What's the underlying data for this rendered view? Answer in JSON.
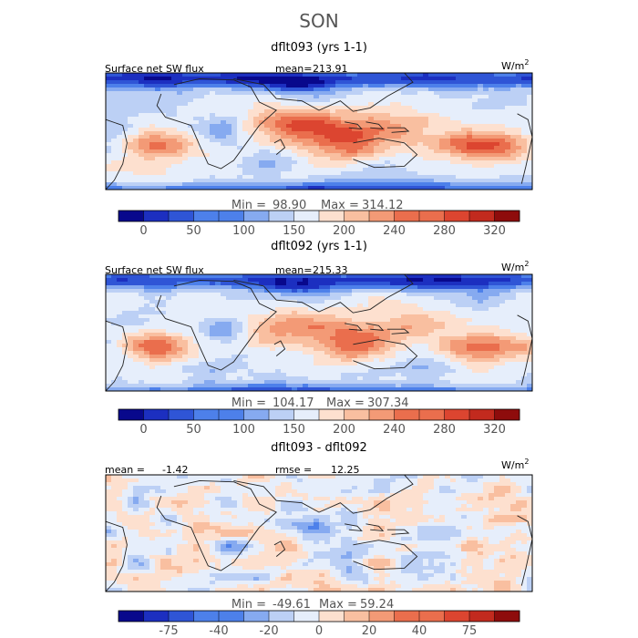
{
  "figure": {
    "season": "SON"
  },
  "colors": {
    "abs_palette": [
      "#08088c",
      "#1c2fc0",
      "#2f55d6",
      "#4d80ea",
      "#86aaf0",
      "#bcd0f5",
      "#e6eefb",
      "#fde0cf",
      "#f9bfa0",
      "#f39a76",
      "#ea6e4d",
      "#dc4530",
      "#c22a1e",
      "#8e0c0c"
    ],
    "diff_palette": [
      "#08088c",
      "#1c2fc0",
      "#2f55d6",
      "#4d80ea",
      "#86aaf0",
      "#bcd0f5",
      "#e6eefb",
      "#fde0cf",
      "#f9bfa0",
      "#f39a76",
      "#ea6e4d",
      "#dc4530",
      "#c22a1e",
      "#8e0c0c"
    ],
    "land_outline": "#222222"
  },
  "chart_data": [
    {
      "type": "heatmap",
      "title": "dflt093 (yrs 1-1)",
      "field_label": "Surface net SW flux",
      "stat_label": "mean=",
      "stat_value": "213.91",
      "units": "W/m",
      "units_sup": "2",
      "min_label": "Min =",
      "min_value": "98.90",
      "max_label": "Max =",
      "max_value": "314.12",
      "colorbar_ticks": [
        "0",
        "50",
        "100",
        "150",
        "200",
        "240",
        "280",
        "320"
      ],
      "colorbar_tick_slots": [
        1,
        3,
        5,
        7,
        9,
        11,
        13,
        15
      ],
      "colorbar_segments": 16,
      "mean": 213.91,
      "min": 98.9,
      "max": 314.12
    },
    {
      "type": "heatmap",
      "title": "dflt092 (yrs 1-1)",
      "field_label": "Surface net SW flux",
      "stat_label": "mean=",
      "stat_value": "215.33",
      "units": "W/m",
      "units_sup": "2",
      "min_label": "Min =",
      "min_value": "104.17",
      "max_label": "Max =",
      "max_value": "307.34",
      "colorbar_ticks": [
        "0",
        "50",
        "100",
        "150",
        "200",
        "240",
        "280",
        "320"
      ],
      "colorbar_tick_slots": [
        1,
        3,
        5,
        7,
        9,
        11,
        13,
        15
      ],
      "colorbar_segments": 16,
      "mean": 215.33,
      "min": 104.17,
      "max": 307.34
    },
    {
      "type": "heatmap",
      "title": "dflt093 - dflt092",
      "field_label": "mean =",
      "field_value": "-1.42",
      "stat_label": "rmse =",
      "stat_value": "12.25",
      "units": "W/m",
      "units_sup": "2",
      "min_label": "Min =",
      "min_value": "-49.61",
      "max_label": "Max =",
      "max_value": "59.24",
      "colorbar_ticks": [
        "-75",
        "-40",
        "-20",
        "0",
        "20",
        "40",
        "75"
      ],
      "colorbar_tick_slots": [
        2,
        4,
        6,
        8,
        10,
        12,
        14
      ],
      "colorbar_segments": 16,
      "mean": -1.42,
      "rmse": 12.25,
      "min": -49.61,
      "max": 59.24
    }
  ]
}
